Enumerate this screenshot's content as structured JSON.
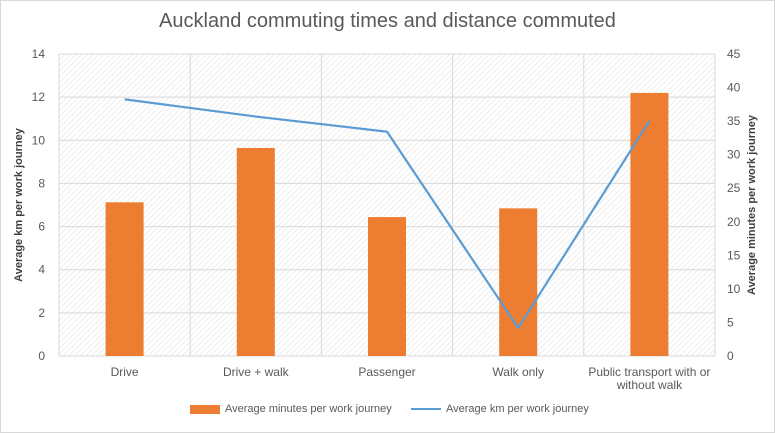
{
  "chart_data": {
    "type": "bar+line",
    "title": "Auckland commuting times and distance commuted",
    "categories": [
      "Drive",
      "Drive + walk",
      "Passenger",
      "Walk only",
      "Public transport with or without walk"
    ],
    "category_lines": [
      [
        "Drive"
      ],
      [
        "Drive + walk"
      ],
      [
        "Passenger"
      ],
      [
        "Walk only"
      ],
      [
        "Public transport with or",
        "without walk"
      ]
    ],
    "series": [
      {
        "name": "Average minutes per work journey",
        "type": "bar",
        "axis": "right",
        "color": "#ed7d31",
        "values": [
          22.9,
          31.0,
          20.7,
          22.0,
          39.2
        ]
      },
      {
        "name": "Average km per work journey",
        "type": "line",
        "axis": "left",
        "color": "#5b9bd5",
        "values": [
          11.9,
          11.1,
          10.4,
          1.3,
          10.9
        ]
      }
    ],
    "y_left": {
      "label": "Average km per work journey",
      "min": 0,
      "max": 14,
      "step": 2,
      "ticks": [
        "0",
        "2",
        "4",
        "6",
        "8",
        "10",
        "12",
        "14"
      ]
    },
    "y_right": {
      "label": "Average minutes per work journey",
      "min": 0,
      "max": 45,
      "step": 5,
      "ticks": [
        "0",
        "5",
        "10",
        "15",
        "20",
        "25",
        "30",
        "35",
        "40",
        "45"
      ]
    },
    "grid": true,
    "legend_position": "bottom"
  }
}
